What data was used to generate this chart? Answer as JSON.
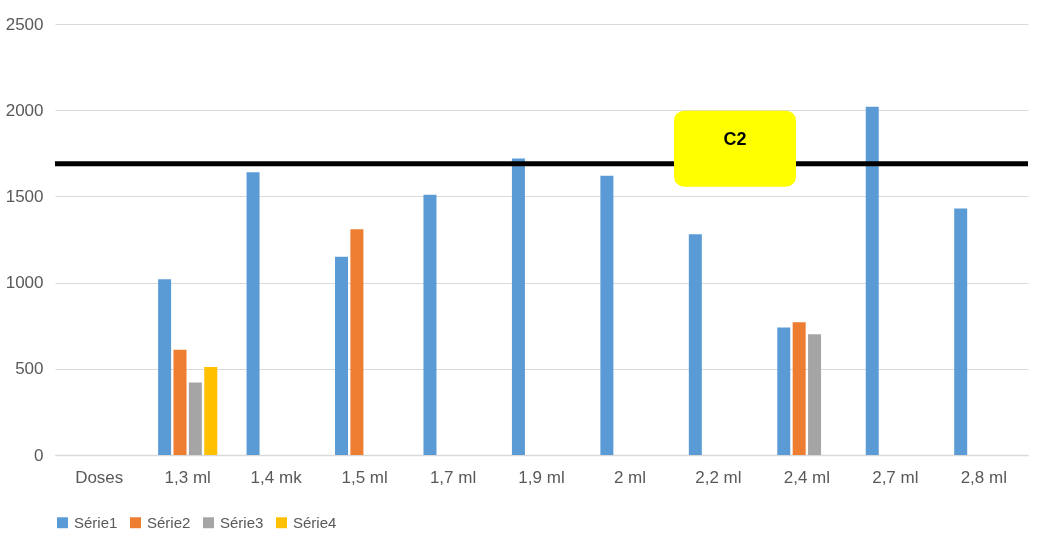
{
  "chart_data": {
    "type": "bar",
    "categories": [
      "Doses",
      "1,3 ml",
      "1,4 mk",
      "1,5 ml",
      "1,7 ml",
      "1,9 ml",
      "2 ml",
      "2,2 ml",
      "2,4 ml",
      "2,7 ml",
      "2,8 ml"
    ],
    "series": [
      {
        "name": "Série1",
        "color": "#5b9bd5",
        "values": [
          null,
          1020,
          1640,
          1150,
          1510,
          1720,
          1620,
          1280,
          740,
          2020,
          1430
        ]
      },
      {
        "name": "Série2",
        "color": "#ed7d31",
        "values": [
          null,
          610,
          null,
          1310,
          null,
          null,
          null,
          null,
          770,
          null,
          null
        ]
      },
      {
        "name": "Série3",
        "color": "#a5a5a5",
        "values": [
          null,
          420,
          null,
          null,
          null,
          null,
          null,
          null,
          700,
          null,
          null
        ]
      },
      {
        "name": "Série4",
        "color": "#ffc000",
        "values": [
          null,
          510,
          null,
          null,
          null,
          null,
          null,
          null,
          null,
          null,
          null
        ]
      }
    ],
    "ylim": [
      0,
      2500
    ],
    "yticks": [
      0,
      500,
      1000,
      1500,
      2000,
      2500
    ],
    "grid": "y",
    "legend": "bottom",
    "ref_lines": [
      {
        "axis": "y",
        "value": 1690,
        "label": "C2",
        "color": "#000000"
      }
    ]
  }
}
